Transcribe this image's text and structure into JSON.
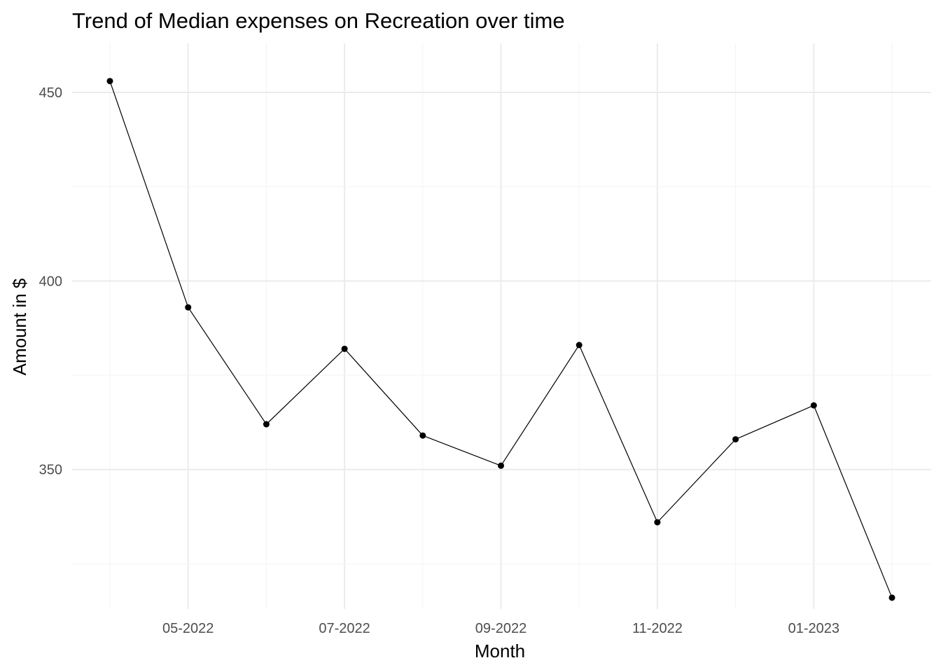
{
  "chart_data": {
    "type": "line",
    "title": "Trend of Median expenses on Recreation over time",
    "xlabel": "Month",
    "ylabel": "Amount in $",
    "x": [
      "2022-04",
      "2022-05",
      "2022-06",
      "2022-07",
      "2022-08",
      "2022-09",
      "2022-10",
      "2022-11",
      "2022-12",
      "2023-01",
      "2023-02"
    ],
    "values": [
      453,
      393,
      362,
      382,
      359,
      351,
      383,
      336,
      358,
      367,
      316
    ],
    "x_ticks": [
      {
        "x": "2022-05",
        "label": "05-2022"
      },
      {
        "x": "2022-07",
        "label": "07-2022"
      },
      {
        "x": "2022-09",
        "label": "09-2022"
      },
      {
        "x": "2022-11",
        "label": "11-2022"
      },
      {
        "x": "2023-01",
        "label": "01-2023"
      }
    ],
    "y_ticks": [
      350,
      400,
      450
    ],
    "ylim": [
      313,
      463
    ],
    "grid": true,
    "legend": "none",
    "colors": {
      "line": "#000000",
      "point": "#000000",
      "grid": "#ebebeb",
      "tick_text": "#4d4d4d"
    }
  }
}
